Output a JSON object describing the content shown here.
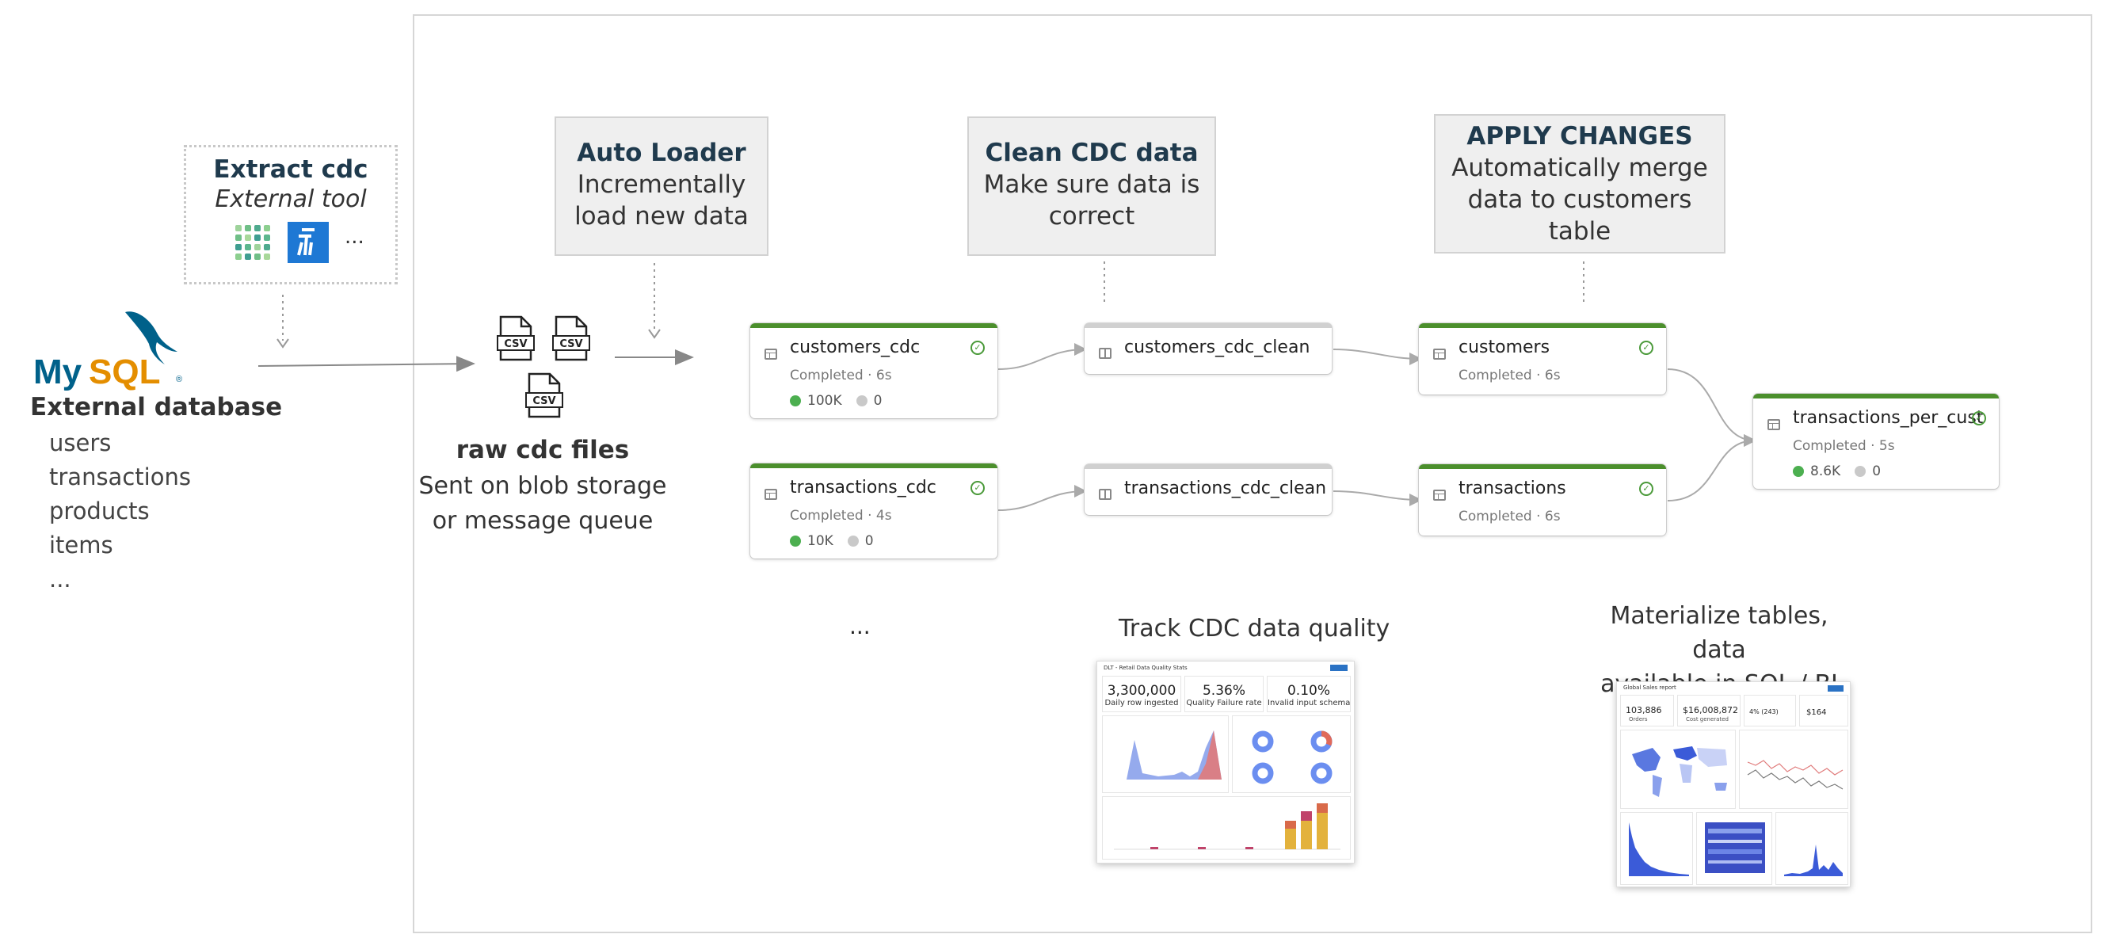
{
  "source": {
    "db_title": "External database",
    "db_tables": [
      "users",
      "transactions",
      "products",
      "items",
      "..."
    ]
  },
  "extract": {
    "title": "Extract cdc",
    "subtitle": "External tool",
    "more": "..."
  },
  "raw_files": {
    "file_label": "CSV",
    "title": "raw cdc files",
    "subtitle": [
      "Sent on blob storage",
      "or message queue"
    ]
  },
  "steps": {
    "auto_loader": {
      "title": "Auto Loader",
      "lines": [
        "Incrementally",
        "load new data"
      ]
    },
    "clean": {
      "title": "Clean CDC data",
      "lines": [
        "Make sure data is",
        "correct"
      ]
    },
    "apply": {
      "title": "APPLY CHANGES",
      "lines": [
        "Automatically merge",
        "data to customers",
        "table"
      ]
    }
  },
  "pipeline": {
    "nodes": {
      "customers_cdc": {
        "name": "customers_cdc",
        "status": "Completed · 6s",
        "count_ok": "100K",
        "count_drop": "0"
      },
      "transactions_cdc": {
        "name": "transactions_cdc",
        "status": "Completed · 4s",
        "count_ok": "10K",
        "count_drop": "0"
      },
      "customers_cdc_clean": {
        "name": "customers_cdc_clean"
      },
      "transactions_cdc_clean": {
        "name": "transactions_cdc_clean"
      },
      "customers": {
        "name": "customers",
        "status": "Completed · 6s"
      },
      "transactions": {
        "name": "transactions",
        "status": "Completed · 6s"
      },
      "transactions_per_cust": {
        "name": "transactions_per_cust",
        "status": "Completed · 5s",
        "count_ok": "8.6K",
        "count_drop": "0"
      }
    },
    "ellipsis": "..."
  },
  "quality": {
    "caption": "Track CDC data quality",
    "dashboard_title": "DLT - Retail Data Quality Stats",
    "kpis": [
      {
        "value": "3,300,000",
        "label": "Daily row ingested"
      },
      {
        "value": "5.36%",
        "label": "Quality Failure rate"
      },
      {
        "value": "0.10%",
        "label": "Invalid input schema"
      }
    ]
  },
  "bi": {
    "caption": [
      "Materialize tables, data",
      "available in SQL / BI"
    ],
    "dashboard_title": "Global Sales report",
    "kpis": [
      {
        "value": "103,886",
        "label": "Orders"
      },
      {
        "value": "$16,008,872",
        "label": "Cost generated"
      },
      {
        "value": "4% (243)",
        "label": ""
      },
      {
        "value": "$164",
        "label": ""
      }
    ]
  },
  "colors": {
    "accent_green": "#4b8f2c",
    "title_navy": "#1f3a4d",
    "mysql_blue": "#00618a",
    "mysql_orange": "#e48e00"
  },
  "icons": [
    "mysql-logo",
    "fivetran-icon",
    "debezium-icon",
    "csv-file-icon",
    "table-icon",
    "view-icon",
    "check-icon"
  ]
}
